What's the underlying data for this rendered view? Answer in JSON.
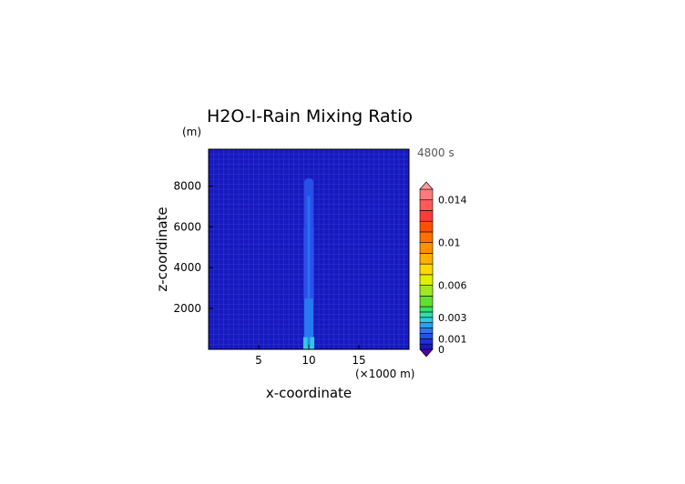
{
  "chart_data": {
    "type": "heatmap",
    "title": "H2O-I-Rain Mixing Ratio",
    "y_unit": "(m)",
    "x_unit": "(×1000 m)",
    "xlabel": "x-coordinate",
    "ylabel": "z-coordinate",
    "time_label": "4800 s",
    "xlim": [
      0,
      20
    ],
    "ylim": [
      0,
      9800
    ],
    "x_ticks": [
      5,
      10,
      15
    ],
    "y_ticks": [
      2000,
      4000,
      6000,
      8000
    ],
    "background_value": 0.0004,
    "column": {
      "x_center": 10,
      "top": 8200,
      "segments": [
        {
          "z0": 0,
          "z1": 600,
          "half_width": 0.55,
          "value": 0.0025
        },
        {
          "z0": 600,
          "z1": 2500,
          "half_width": 0.45,
          "value": 0.0019
        },
        {
          "z0": 2500,
          "z1": 6000,
          "half_width": 0.5,
          "value": 0.0013
        },
        {
          "z0": 6000,
          "z1": 8200,
          "half_width": 0.45,
          "value": 0.0011
        }
      ]
    },
    "colorbar": {
      "levels": [
        0,
        0.0005,
        0.001,
        0.0015,
        0.002,
        0.0025,
        0.003,
        0.0035,
        0.004,
        0.005,
        0.006,
        0.007,
        0.008,
        0.009,
        0.01,
        0.011,
        0.012,
        0.013,
        0.014,
        0.015
      ],
      "colors": [
        "#1818c0",
        "#2030d8",
        "#2850e8",
        "#2878f0",
        "#28a0f8",
        "#30c8e8",
        "#30e0a8",
        "#38e068",
        "#60e030",
        "#a0e820",
        "#e0f000",
        "#ffd800",
        "#ffb000",
        "#ff9000",
        "#ff7000",
        "#ff5000",
        "#ff3a3a",
        "#ff5a5a",
        "#ff7a7a"
      ],
      "under_color": "#5000a0",
      "over_color": "#ff9a9a",
      "labels": [
        {
          "value": 0,
          "text": "0"
        },
        {
          "value": 0.001,
          "text": "0.001"
        },
        {
          "value": 0.003,
          "text": "0.003"
        },
        {
          "value": 0.006,
          "text": "0.006"
        },
        {
          "value": 0.01,
          "text": "0.01"
        },
        {
          "value": 0.014,
          "text": "0.014"
        }
      ]
    }
  }
}
